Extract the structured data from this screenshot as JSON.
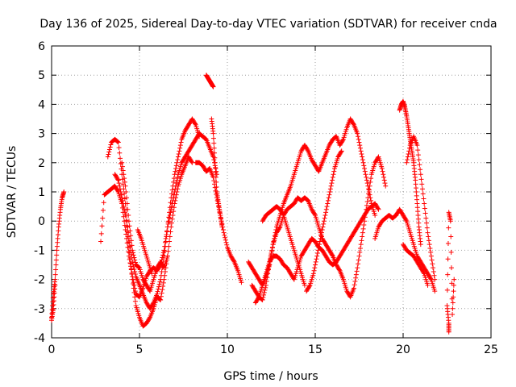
{
  "chart_data": {
    "type": "scatter",
    "title": "Day 136 of 2025, Sidereal Day-to-day VTEC variation (SDTVAR) for receiver cnda",
    "xlabel": "GPS time / hours",
    "ylabel": "SDTVAR / TECUs",
    "xlim": [
      0,
      25
    ],
    "ylim": [
      -4,
      6
    ],
    "xticks": [
      "0",
      "5",
      "10",
      "15",
      "20",
      "25"
    ],
    "yticks": [
      "-4",
      "-3",
      "-2",
      "-1",
      "0",
      "1",
      "2",
      "3",
      "4",
      "5",
      "6"
    ],
    "grid": true,
    "marker": "+",
    "color": "#ff0000",
    "series": [
      {
        "name": "s1",
        "x": [
          0.0,
          0.1,
          0.2,
          0.3,
          0.4,
          0.5,
          0.6,
          0.7
        ],
        "y": [
          -3.3,
          -2.5,
          -2.0,
          -1.0,
          -0.2,
          0.4,
          0.8,
          1.0
        ]
      },
      {
        "name": "s2",
        "x": [
          0.0,
          0.1,
          0.2
        ],
        "y": [
          -3.4,
          -3.0,
          -2.2
        ]
      },
      {
        "name": "s3",
        "x": [
          2.8,
          3.0,
          3.2,
          3.4,
          3.6,
          3.8,
          4.0,
          4.2,
          4.4,
          4.6,
          4.8,
          5.0,
          5.2,
          5.4,
          5.6,
          5.8,
          6.0,
          6.2,
          6.4,
          6.6,
          6.8,
          7.0,
          7.2,
          7.4,
          7.6,
          7.8,
          8.0,
          8.2,
          8.4,
          8.6,
          8.8,
          9.0,
          9.2,
          9.4
        ],
        "y": [
          -0.7,
          0.9,
          1.0,
          1.1,
          1.2,
          1.0,
          0.6,
          -0.3,
          -1.2,
          -1.9,
          -2.5,
          -2.6,
          -2.3,
          -1.9,
          -1.7,
          -1.6,
          -1.7,
          -1.5,
          -1.0,
          -0.2,
          0.4,
          1.0,
          1.6,
          2.0,
          2.2,
          2.4,
          2.6,
          2.8,
          3.0,
          2.9,
          2.8,
          2.5,
          2.2,
          1.6
        ]
      },
      {
        "name": "s4",
        "x": [
          3.2,
          3.4,
          3.6,
          3.8,
          4.0,
          4.2,
          4.4,
          4.6,
          4.8,
          5.0,
          5.2,
          5.4,
          5.6,
          5.8,
          6.0,
          6.2,
          6.4,
          6.6,
          6.8,
          7.0,
          7.2,
          7.4,
          7.6,
          7.8,
          8.0,
          8.2,
          8.4
        ],
        "y": [
          2.2,
          2.7,
          2.8,
          2.7,
          1.6,
          0.6,
          -0.6,
          -1.4,
          -1.9,
          -2.2,
          -2.5,
          -2.8,
          -3.0,
          -2.8,
          -2.5,
          -2.0,
          -1.2,
          -0.2,
          0.8,
          1.6,
          2.2,
          2.8,
          3.1,
          3.3,
          3.5,
          3.3,
          2.9
        ]
      },
      {
        "name": "s5",
        "x": [
          3.6,
          3.8,
          4.0,
          4.2,
          4.4,
          4.6,
          4.8,
          5.0,
          5.2,
          5.4,
          5.6,
          5.8,
          6.0,
          6.2,
          6.4,
          6.6,
          6.8,
          7.0,
          7.2,
          7.4,
          7.6,
          7.8,
          8.0
        ],
        "y": [
          1.6,
          1.4,
          0.8,
          0.2,
          -0.9,
          -2.0,
          -2.9,
          -3.3,
          -3.6,
          -3.5,
          -3.3,
          -3.0,
          -2.6,
          -2.7,
          -2.0,
          -1.2,
          -0.2,
          0.6,
          1.2,
          1.6,
          1.9,
          2.2,
          2.0
        ]
      },
      {
        "name": "s6",
        "x": [
          4.0,
          4.2,
          4.4,
          4.6,
          4.8,
          5.0,
          5.2,
          5.4,
          5.6,
          5.8,
          6.0,
          6.2,
          6.4,
          6.6
        ],
        "y": [
          2.0,
          1.2,
          0.0,
          -1.0,
          -1.5,
          -1.6,
          -2.0,
          -2.2,
          -2.4,
          -2.0,
          -1.6,
          -1.4,
          -1.6,
          -1.2
        ]
      },
      {
        "name": "s7",
        "x": [
          4.9,
          5.1,
          5.3,
          5.5,
          5.7
        ],
        "y": [
          -0.3,
          -0.6,
          -1.0,
          -1.4,
          -1.8
        ]
      },
      {
        "name": "s8",
        "x": [
          8.2,
          8.4,
          8.6,
          8.8,
          9.0,
          9.2,
          9.4,
          9.6,
          9.8,
          10.0,
          10.2,
          10.4,
          10.6,
          10.8
        ],
        "y": [
          2.0,
          2.0,
          1.9,
          1.7,
          1.8,
          1.5,
          0.8,
          0.2,
          -0.4,
          -0.9,
          -1.2,
          -1.4,
          -1.7,
          -2.1
        ]
      },
      {
        "name": "s9",
        "x": [
          8.8,
          8.9,
          9.0,
          9.1,
          9.2
        ],
        "y": [
          5.0,
          4.9,
          4.8,
          4.7,
          4.6
        ]
      },
      {
        "name": "s10",
        "x": [
          9.1,
          9.2,
          9.3,
          9.4,
          9.5,
          9.6,
          9.7
        ],
        "y": [
          3.5,
          3.0,
          2.0,
          1.0,
          0.6,
          0.2,
          -0.2
        ]
      },
      {
        "name": "s11",
        "x": [
          11.2,
          11.4,
          11.6,
          11.8,
          12.0,
          12.2,
          12.4,
          12.6,
          12.8,
          13.0,
          13.2,
          13.4,
          13.6,
          13.8,
          14.0,
          14.2,
          14.4,
          14.6,
          14.8,
          15.0,
          15.2,
          15.4,
          15.6,
          15.8,
          16.0,
          16.2,
          16.4,
          16.6,
          16.8,
          17.0,
          17.2,
          17.4,
          17.6,
          17.8,
          18.0,
          18.2,
          18.4
        ],
        "y": [
          -1.4,
          -1.6,
          -1.8,
          -2.0,
          -2.2,
          -1.9,
          -1.5,
          -0.8,
          -0.2,
          0.2,
          0.6,
          0.9,
          1.2,
          1.6,
          2.0,
          2.4,
          2.6,
          2.4,
          2.1,
          1.9,
          1.7,
          2.0,
          2.3,
          2.6,
          2.8,
          2.9,
          2.6,
          2.8,
          3.2,
          3.5,
          3.3,
          3.0,
          2.4,
          1.8,
          1.2,
          0.6,
          0.2
        ]
      },
      {
        "name": "s12",
        "x": [
          11.4,
          11.6,
          11.8,
          12.0,
          12.2,
          12.4,
          12.6,
          12.8,
          13.0,
          13.2,
          13.4,
          13.6,
          13.8,
          14.0,
          14.2,
          14.4,
          14.6,
          14.8,
          15.0,
          15.2,
          15.4,
          15.6,
          15.8,
          16.0,
          16.2,
          16.4,
          16.6,
          16.8,
          17.0,
          17.2,
          17.4,
          17.6,
          17.8,
          18.0,
          18.2,
          18.4,
          18.6,
          18.8,
          19.0
        ],
        "y": [
          -2.2,
          -2.4,
          -2.6,
          -2.7,
          -2.2,
          -1.4,
          -0.8,
          -0.4,
          -0.2,
          0.2,
          0.4,
          0.5,
          0.6,
          0.8,
          0.7,
          0.8,
          0.7,
          0.4,
          0.2,
          -0.2,
          -0.6,
          -0.8,
          -1.0,
          -1.2,
          -1.5,
          -1.7,
          -2.0,
          -2.4,
          -2.6,
          -2.3,
          -1.6,
          -0.8,
          0.0,
          0.8,
          1.6,
          2.0,
          2.2,
          1.8,
          1.2
        ]
      },
      {
        "name": "s13",
        "x": [
          11.6,
          11.8,
          12.0,
          12.2,
          12.4,
          12.6,
          12.8,
          13.0,
          13.2,
          13.4,
          13.6,
          13.8,
          14.0,
          14.2,
          14.4,
          14.6,
          14.8,
          15.0,
          15.2,
          15.4,
          15.6,
          15.8,
          16.0,
          16.2,
          16.4,
          16.6,
          16.8,
          17.0,
          17.2,
          17.4,
          17.6,
          17.8,
          18.0,
          18.2,
          18.4,
          18.6
        ],
        "y": [
          -2.8,
          -2.6,
          -2.2,
          -1.8,
          -1.4,
          -1.2,
          -1.2,
          -1.3,
          -1.5,
          -1.6,
          -1.8,
          -2.0,
          -1.6,
          -1.2,
          -1.0,
          -0.8,
          -0.6,
          -0.7,
          -0.9,
          -1.0,
          -1.2,
          -1.4,
          -1.5,
          -1.4,
          -1.2,
          -1.0,
          -0.8,
          -0.6,
          -0.4,
          -0.2,
          0.0,
          0.2,
          0.4,
          0.5,
          0.6,
          0.4
        ]
      },
      {
        "name": "s14",
        "x": [
          12.0,
          12.2,
          12.4,
          12.6,
          12.8,
          13.0,
          13.2,
          13.4,
          13.6,
          13.8,
          14.0,
          14.2,
          14.4
        ],
        "y": [
          0.0,
          0.2,
          0.3,
          0.4,
          0.5,
          0.4,
          0.2,
          -0.2,
          -0.6,
          -1.0,
          -1.4,
          -1.8,
          -2.2
        ]
      },
      {
        "name": "s15",
        "x": [
          14.5,
          14.7,
          14.9,
          15.1,
          15.3,
          15.5,
          15.7,
          15.9,
          16.1,
          16.3,
          16.5
        ],
        "y": [
          -2.4,
          -2.2,
          -1.8,
          -1.2,
          -0.6,
          0.0,
          0.6,
          1.2,
          1.8,
          2.2,
          2.4
        ]
      },
      {
        "name": "s16",
        "x": [
          18.4,
          18.6,
          18.8,
          19.0,
          19.2,
          19.4,
          19.6,
          19.8,
          20.0,
          20.2,
          20.4,
          20.6,
          20.8,
          21.0,
          21.2,
          21.4,
          21.6,
          21.8
        ],
        "y": [
          -0.6,
          -0.2,
          0.0,
          0.1,
          0.2,
          0.1,
          0.2,
          0.4,
          0.2,
          0.0,
          -0.4,
          -0.8,
          -1.2,
          -1.4,
          -1.6,
          -1.8,
          -2.0,
          -2.4
        ]
      },
      {
        "name": "s17",
        "x": [
          19.8,
          19.9,
          20.0,
          20.1,
          20.2,
          20.3,
          20.4,
          20.5,
          20.6,
          20.7,
          20.8,
          20.9,
          21.0
        ],
        "y": [
          3.8,
          4.0,
          4.1,
          3.9,
          3.6,
          3.2,
          2.8,
          2.4,
          2.0,
          1.4,
          0.6,
          -0.2,
          -0.8
        ]
      },
      {
        "name": "s18",
        "x": [
          20.2,
          20.4,
          20.6,
          20.8,
          21.0,
          21.2,
          21.4,
          21.6,
          21.8
        ],
        "y": [
          2.0,
          2.6,
          2.9,
          2.6,
          1.6,
          0.6,
          -0.4,
          -1.2,
          -2.0
        ]
      },
      {
        "name": "s19",
        "x": [
          20.0,
          20.2,
          20.4,
          20.6,
          20.8,
          21.0,
          21.2,
          21.4
        ],
        "y": [
          -0.8,
          -1.0,
          -1.1,
          -1.2,
          -1.4,
          -1.6,
          -1.8,
          -2.2
        ]
      },
      {
        "name": "s20",
        "x": [
          22.6,
          22.6,
          22.5,
          22.6,
          22.7,
          22.8,
          22.9
        ],
        "y": [
          -3.8,
          -3.5,
          -2.9,
          0.3,
          0.0,
          -3.2,
          -2.0
        ]
      }
    ]
  }
}
